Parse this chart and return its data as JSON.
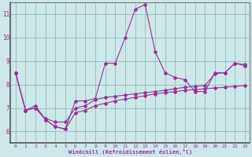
{
  "x": [
    0,
    1,
    2,
    3,
    4,
    5,
    6,
    7,
    8,
    9,
    10,
    11,
    12,
    13,
    14,
    15,
    16,
    17,
    18,
    19,
    20,
    21,
    22,
    23
  ],
  "line_main": [
    8.5,
    6.9,
    7.1,
    6.5,
    6.2,
    6.1,
    7.3,
    7.3,
    7.4,
    8.9,
    8.9,
    10.0,
    11.2,
    11.4,
    9.4,
    8.5,
    8.3,
    8.2,
    7.7,
    7.7,
    8.5,
    8.5,
    8.9,
    8.8
  ],
  "line_upper": [
    8.5,
    6.9,
    7.0,
    6.55,
    6.4,
    6.4,
    7.0,
    7.1,
    7.35,
    7.45,
    7.5,
    7.55,
    7.6,
    7.65,
    7.7,
    7.75,
    7.82,
    7.88,
    7.92,
    7.96,
    8.45,
    8.5,
    8.9,
    8.85
  ],
  "line_lower": [
    8.5,
    6.9,
    7.0,
    6.5,
    6.2,
    6.1,
    6.8,
    6.9,
    7.1,
    7.2,
    7.3,
    7.38,
    7.45,
    7.52,
    7.6,
    7.65,
    7.7,
    7.75,
    7.78,
    7.82,
    7.85,
    7.88,
    7.92,
    7.95
  ],
  "line_color": "#993399",
  "bg_color": "#cce8e8",
  "grid_color": "#99bbbb",
  "xlabel": "Windchill (Refroidissement éolien,°C)",
  "xlim": [
    -0.5,
    23.5
  ],
  "ylim": [
    5.5,
    11.5
  ],
  "yticks": [
    6,
    7,
    8,
    9,
    10,
    11
  ],
  "xticks": [
    0,
    1,
    2,
    3,
    4,
    5,
    6,
    7,
    8,
    9,
    10,
    11,
    12,
    13,
    14,
    15,
    16,
    17,
    18,
    19,
    20,
    21,
    22,
    23
  ]
}
